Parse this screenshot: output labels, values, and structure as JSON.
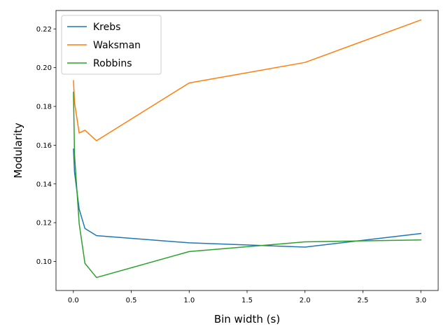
{
  "chart_data": {
    "type": "line",
    "title": "",
    "xlabel": "Bin width (s)",
    "ylabel": "Modularity",
    "xlim": [
      -0.15,
      3.15
    ],
    "ylim": [
      0.085,
      0.2295
    ],
    "xticks": [
      0.0,
      0.5,
      1.0,
      1.5,
      2.0,
      2.5,
      3.0
    ],
    "xtick_labels": [
      "0.0",
      "0.5",
      "1.0",
      "1.5",
      "2.0",
      "2.5",
      "3.0"
    ],
    "yticks": [
      0.1,
      0.12,
      0.14,
      0.16,
      0.18,
      0.2,
      0.22
    ],
    "ytick_labels": [
      "0.10",
      "0.12",
      "0.14",
      "0.16",
      "0.18",
      "0.20",
      "0.22"
    ],
    "grid": false,
    "legend_position": "top-left",
    "series": [
      {
        "name": "Krebs",
        "color": "#1f77b4",
        "x": [
          0.001,
          0.01,
          0.05,
          0.1,
          0.2,
          1.0,
          2.0,
          3.0
        ],
        "y": [
          0.158,
          0.146,
          0.127,
          0.117,
          0.1133,
          0.1096,
          0.1074,
          0.1144
        ]
      },
      {
        "name": "Waksman",
        "color": "#ff7f0e",
        "x": [
          0.001,
          0.01,
          0.05,
          0.1,
          0.2,
          1.0,
          2.0,
          3.0
        ],
        "y": [
          0.1933,
          0.182,
          0.1663,
          0.1677,
          0.1623,
          0.1921,
          0.2027,
          0.2246
        ]
      },
      {
        "name": "Robbins",
        "color": "#2ca02c",
        "x": [
          0.001,
          0.01,
          0.05,
          0.1,
          0.2,
          1.0,
          2.0,
          3.0
        ],
        "y": [
          0.1873,
          0.155,
          0.1196,
          0.099,
          0.0917,
          0.1051,
          0.1101,
          0.1111
        ]
      }
    ]
  }
}
